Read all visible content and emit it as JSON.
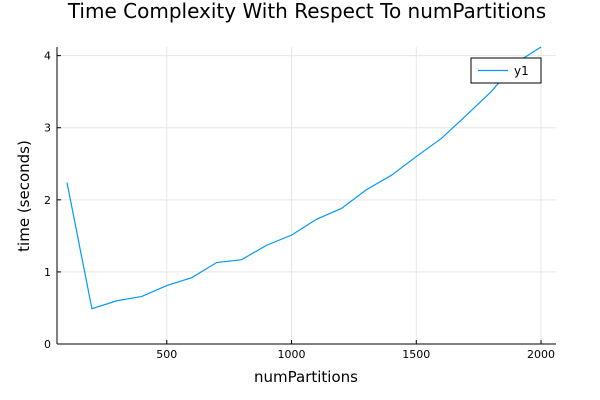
{
  "chart_data": {
    "type": "line",
    "title": "Time Complexity With Respect To numPartitions",
    "xlabel": "numPartitions",
    "ylabel": "time (seconds)",
    "xlim": [
      60,
      2060
    ],
    "ylim": [
      0,
      4.12
    ],
    "xticks": [
      500,
      1000,
      1500,
      2000
    ],
    "yticks": [
      0,
      1,
      2,
      3,
      4
    ],
    "grid": true,
    "legend_position": "top-right",
    "series": [
      {
        "name": "y1",
        "color": "#009af9",
        "x": [
          100,
          200,
          300,
          400,
          500,
          600,
          700,
          800,
          900,
          1000,
          1100,
          1200,
          1300,
          1400,
          1500,
          1600,
          1700,
          1800,
          1900,
          2000
        ],
        "y": [
          2.24,
          0.49,
          0.6,
          0.66,
          0.81,
          0.92,
          1.13,
          1.17,
          1.37,
          1.51,
          1.73,
          1.88,
          2.14,
          2.34,
          2.6,
          2.85,
          3.17,
          3.5,
          3.9,
          4.12
        ]
      }
    ]
  }
}
